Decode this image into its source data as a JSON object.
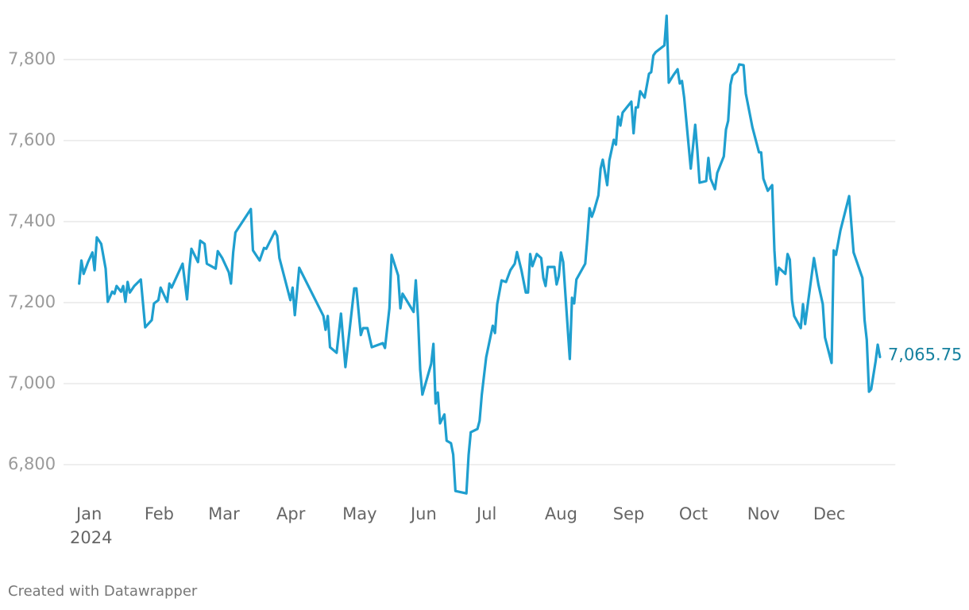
{
  "chart_data": {
    "type": "line",
    "year_label": "2024",
    "footer": "Created with Datawrapper",
    "end_label": "7,065.75",
    "color": "#1f9fcf",
    "label_color": "#16819f",
    "grid": true,
    "xlim": [
      0,
      373
    ],
    "ylim": [
      6730,
      7910
    ],
    "xticks": [
      {
        "value": 1,
        "label": "Jan"
      },
      {
        "value": 32,
        "label": "Feb"
      },
      {
        "value": 61,
        "label": "Mar"
      },
      {
        "value": 92,
        "label": "Apr"
      },
      {
        "value": 122,
        "label": "May"
      },
      {
        "value": 153,
        "label": "Jun"
      },
      {
        "value": 183,
        "label": "Jul"
      },
      {
        "value": 214,
        "label": "Aug"
      },
      {
        "value": 245,
        "label": "Sep"
      },
      {
        "value": 275,
        "label": "Oct"
      },
      {
        "value": 306,
        "label": "Nov"
      },
      {
        "value": 336,
        "label": "Dec"
      }
    ],
    "yticks": [
      {
        "value": 6800,
        "label": "6,800"
      },
      {
        "value": 7000,
        "label": "7,000"
      },
      {
        "value": 7200,
        "label": "7,200"
      },
      {
        "value": 7400,
        "label": "7,400"
      },
      {
        "value": 7600,
        "label": "7,600"
      },
      {
        "value": 7800,
        "label": "7,800"
      }
    ],
    "x": [
      2,
      3,
      4,
      6,
      8,
      9,
      10,
      12,
      14,
      15,
      17,
      18,
      19,
      21,
      22,
      23,
      24,
      25,
      27,
      30,
      32,
      35,
      36,
      38,
      39,
      42,
      43,
      44,
      49,
      51,
      52,
      53,
      56,
      57,
      59,
      60,
      64,
      65,
      67,
      70,
      71,
      72,
      73,
      80,
      81,
      84,
      86,
      87,
      91,
      92,
      93,
      98,
      99,
      100,
      102,
      113,
      114,
      115,
      116,
      119,
      121,
      123,
      127,
      128,
      130,
      131,
      133,
      135,
      140,
      141,
      143,
      144,
      147,
      148,
      149,
      154,
      155,
      156,
      157,
      158,
      162,
      163,
      164,
      165,
      166,
      168,
      169,
      171,
      172,
      173,
      178,
      179,
      180,
      183,
      184,
      185,
      187,
      190,
      191,
      192,
      194,
      196,
      198,
      200,
      201,
      203,
      205,
      206,
      207,
      208,
      210,
      212,
      213,
      214,
      215,
      218,
      219,
      220,
      221,
      222,
      225,
      226,
      227,
      228,
      232,
      233,
      234,
      235,
      236,
      238,
      239,
      240,
      242,
      243,
      245,
      246,
      247,
      248,
      249,
      253,
      254,
      255,
      256,
      257,
      259,
      261,
      262,
      263,
      264,
      268,
      269,
      270,
      272,
      274,
      275,
      276,
      277,
      280,
      282,
      283,
      284,
      287,
      288,
      289,
      291,
      292,
      295,
      296,
      297,
      298,
      299,
      301,
      302,
      304,
      305,
      308,
      311,
      312,
      313,
      315,
      317,
      318,
      319,
      320,
      323,
      324,
      325,
      326,
      327,
      330,
      331,
      332,
      336,
      338,
      340,
      341,
      344,
      345,
      346,
      348,
      352,
      354,
      358,
      359,
      360,
      361,
      362,
      364,
      365,
      366
    ],
    "values": [
      7247,
      7304,
      7271,
      7300,
      7324,
      7280,
      7361,
      7345,
      7284,
      7202,
      7227,
      7222,
      7241,
      7227,
      7241,
      7202,
      7251,
      7225,
      7241,
      7257,
      7139,
      7157,
      7198,
      7206,
      7237,
      7202,
      7247,
      7237,
      7296,
      7208,
      7280,
      7333,
      7300,
      7353,
      7345,
      7296,
      7284,
      7327,
      7310,
      7275,
      7247,
      7324,
      7373,
      7431,
      7329,
      7304,
      7335,
      7333,
      7376,
      7365,
      7310,
      7206,
      7237,
      7169,
      7286,
      7167,
      7133,
      7167,
      7090,
      7076,
      7173,
      7041,
      7235,
      7235,
      7120,
      7137,
      7137,
      7090,
      7100,
      7088,
      7186,
      7318,
      7267,
      7186,
      7222,
      7177,
      7255,
      7163,
      7035,
      6973,
      7049,
      7098,
      6951,
      6978,
      6902,
      6924,
      6859,
      6853,
      6825,
      6735,
      6729,
      6824,
      6880,
      6888,
      6908,
      6973,
      7065,
      7143,
      7125,
      7196,
      7255,
      7251,
      7280,
      7296,
      7325,
      7280,
      7225,
      7225,
      7320,
      7290,
      7320,
      7310,
      7261,
      7241,
      7288,
      7288,
      7245,
      7265,
      7324,
      7300,
      7061,
      7212,
      7198,
      7257,
      7296,
      7359,
      7433,
      7412,
      7427,
      7465,
      7531,
      7553,
      7490,
      7551,
      7602,
      7590,
      7659,
      7637,
      7669,
      7696,
      7618,
      7682,
      7682,
      7722,
      7706,
      7765,
      7769,
      7810,
      7818,
      7835,
      7908,
      7743,
      7761,
      7776,
      7741,
      7747,
      7706,
      7531,
      7639,
      7575,
      7496,
      7500,
      7557,
      7506,
      7480,
      7520,
      7561,
      7627,
      7649,
      7737,
      7761,
      7771,
      7788,
      7786,
      7716,
      7633,
      7571,
      7571,
      7506,
      7476,
      7490,
      7329,
      7245,
      7286,
      7271,
      7320,
      7306,
      7206,
      7167,
      7137,
      7196,
      7147,
      7310,
      7245,
      7196,
      7114,
      7051,
      7329,
      7318,
      7378,
      7463,
      7324,
      7261,
      7157,
      7108,
      6980,
      6986,
      7055,
      7096,
      7065.75
    ]
  }
}
